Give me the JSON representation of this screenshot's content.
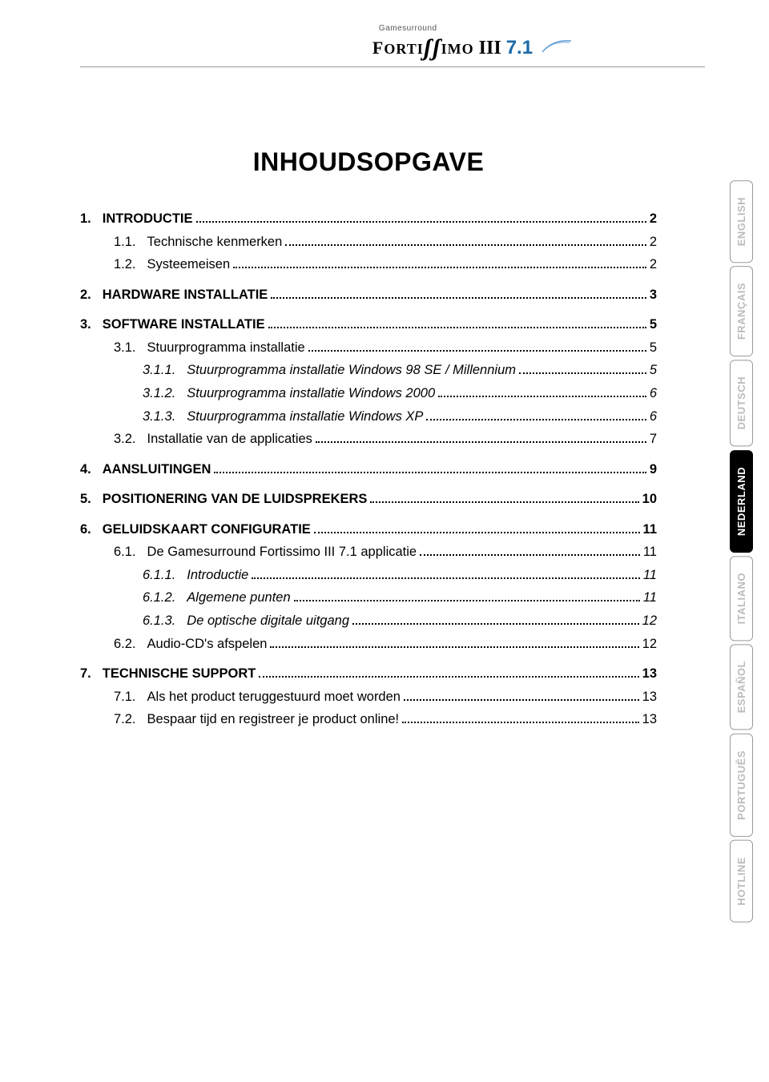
{
  "logo": {
    "small_text": "Gamesurround",
    "brand": "FORTISSIMO",
    "suffix_roman": "III",
    "suffix_version": "7.1"
  },
  "title": "INHOUDSOPGAVE",
  "toc": [
    {
      "level": 1,
      "num": "1.",
      "label": "INTRODUCTIE",
      "page": "2"
    },
    {
      "level": 2,
      "num": "1.1.",
      "label": "Technische kenmerken",
      "page": "2"
    },
    {
      "level": 2,
      "num": "1.2.",
      "label": "Systeemeisen",
      "page": "2"
    },
    {
      "level": 1,
      "num": "2.",
      "label": "HARDWARE INSTALLATIE",
      "page": "3"
    },
    {
      "level": 1,
      "num": "3.",
      "label": "SOFTWARE INSTALLATIE",
      "page": "5"
    },
    {
      "level": 2,
      "num": "3.1.",
      "label": "Stuurprogramma installatie",
      "page": "5"
    },
    {
      "level": 3,
      "num": "3.1.1.",
      "label": "Stuurprogramma installatie Windows 98 SE / Millennium",
      "page": "5"
    },
    {
      "level": 3,
      "num": "3.1.2.",
      "label": "Stuurprogramma installatie Windows 2000",
      "page": "6"
    },
    {
      "level": 3,
      "num": "3.1.3.",
      "label": "Stuurprogramma installatie Windows XP",
      "page": "6"
    },
    {
      "level": 2,
      "num": "3.2.",
      "label": "Installatie van de applicaties",
      "page": "7"
    },
    {
      "level": 1,
      "num": "4.",
      "label": "AANSLUITINGEN",
      "page": "9"
    },
    {
      "level": 1,
      "num": "5.",
      "label": "POSITIONERING VAN DE LUIDSPREKERS",
      "page": "10"
    },
    {
      "level": 1,
      "num": "6.",
      "label": "GELUIDSKAART CONFIGURATIE",
      "page": "11"
    },
    {
      "level": 2,
      "num": "6.1.",
      "label": "De Gamesurround Fortissimo III 7.1 applicatie",
      "page": "11"
    },
    {
      "level": 3,
      "num": "6.1.1.",
      "label": "Introductie",
      "page": "11"
    },
    {
      "level": 3,
      "num": "6.1.2.",
      "label": "Algemene punten",
      "page": "11"
    },
    {
      "level": 3,
      "num": "6.1.3.",
      "label": "De optische digitale uitgang",
      "page": "12"
    },
    {
      "level": 2,
      "num": "6.2.",
      "label": "Audio-CD's afspelen",
      "page": "12"
    },
    {
      "level": 1,
      "num": "7.",
      "label": "TECHNISCHE SUPPORT",
      "page": "13"
    },
    {
      "level": 2,
      "num": "7.1.",
      "label": "Als het product teruggestuurd moet worden",
      "page": "13"
    },
    {
      "level": 2,
      "num": "7.2.",
      "label": "Bespaar tijd en registreer je product online!",
      "page": "13"
    }
  ],
  "sidebar": {
    "tabs": [
      {
        "label": "ENGLISH",
        "active": false
      },
      {
        "label": "FRANÇAIS",
        "active": false
      },
      {
        "label": "DEUTSCH",
        "active": false
      },
      {
        "label": "NEDERLAND",
        "active": true
      },
      {
        "label": "ITALIANO",
        "active": false
      },
      {
        "label": "ESPAÑOL",
        "active": false
      },
      {
        "label": "PORTUGUÊS",
        "active": false
      },
      {
        "label": "HOTLINE",
        "active": false
      }
    ]
  },
  "colors": {
    "text": "#000000",
    "accent": "#1a6aa8",
    "tab_inactive_text": "#bbbbbb",
    "tab_active_bg": "#000000",
    "tab_active_text": "#ffffff",
    "rule": "#999999"
  },
  "typography": {
    "title_fontsize": 32,
    "body_fontsize": 16.5,
    "tab_fontsize": 13,
    "logo_brand_fontsize": 22,
    "logo_suffix_fontsize": 24,
    "logo_small_fontsize": 10
  }
}
